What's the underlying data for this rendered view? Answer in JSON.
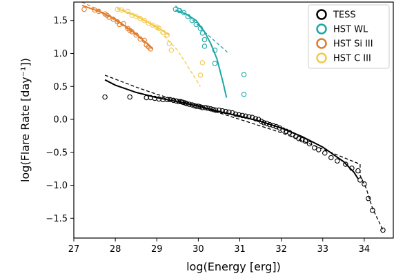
{
  "chart_data": {
    "type": "scatter",
    "xlabel": "log(Energy [erg])",
    "ylabel": "log(Flare Rate [day⁻¹])",
    "xlim": [
      27,
      34.7
    ],
    "ylim": [
      -1.8,
      1.78
    ],
    "xticks": [
      27,
      28,
      29,
      30,
      31,
      32,
      33,
      34
    ],
    "yticks": [
      -1.5,
      -1.0,
      -0.5,
      0.0,
      0.5,
      1.0,
      1.5
    ],
    "xtick_labels": [
      "27",
      "28",
      "29",
      "30",
      "31",
      "32",
      "33",
      "34"
    ],
    "ytick_labels": [
      "−1.5",
      "−1.0",
      "−0.5",
      "0.0",
      "0.5",
      "1.0",
      "1.5"
    ],
    "grid": false,
    "legend_position": "top-right",
    "series": [
      {
        "name": "TESS",
        "color": "#000000",
        "points": [
          [
            27.75,
            0.34
          ],
          [
            28.35,
            0.34
          ],
          [
            28.75,
            0.33
          ],
          [
            28.85,
            0.33
          ],
          [
            28.95,
            0.32
          ],
          [
            29.05,
            0.31
          ],
          [
            29.15,
            0.3
          ],
          [
            29.25,
            0.3
          ],
          [
            29.32,
            0.3
          ],
          [
            29.4,
            0.29
          ],
          [
            29.47,
            0.28
          ],
          [
            29.53,
            0.27
          ],
          [
            29.58,
            0.27
          ],
          [
            29.63,
            0.26
          ],
          [
            29.68,
            0.25
          ],
          [
            29.72,
            0.24
          ],
          [
            29.78,
            0.23
          ],
          [
            29.85,
            0.22
          ],
          [
            29.9,
            0.21
          ],
          [
            29.95,
            0.2
          ],
          [
            30.0,
            0.2
          ],
          [
            30.05,
            0.19
          ],
          [
            30.1,
            0.18
          ],
          [
            30.17,
            0.18
          ],
          [
            30.23,
            0.17
          ],
          [
            30.3,
            0.16
          ],
          [
            30.36,
            0.15
          ],
          [
            30.42,
            0.14
          ],
          [
            30.5,
            0.14
          ],
          [
            30.58,
            0.13
          ],
          [
            30.66,
            0.12
          ],
          [
            30.74,
            0.11
          ],
          [
            30.82,
            0.1
          ],
          [
            30.9,
            0.08
          ],
          [
            30.98,
            0.07
          ],
          [
            31.06,
            0.06
          ],
          [
            31.14,
            0.05
          ],
          [
            31.22,
            0.04
          ],
          [
            31.3,
            0.03
          ],
          [
            31.38,
            0.01
          ],
          [
            31.45,
            0.0
          ],
          [
            31.52,
            -0.03
          ],
          [
            31.58,
            -0.05
          ],
          [
            31.65,
            -0.06
          ],
          [
            31.72,
            -0.08
          ],
          [
            31.8,
            -0.09
          ],
          [
            31.88,
            -0.11
          ],
          [
            31.96,
            -0.13
          ],
          [
            32.04,
            -0.16
          ],
          [
            32.12,
            -0.18
          ],
          [
            32.2,
            -0.2
          ],
          [
            32.28,
            -0.23
          ],
          [
            32.35,
            -0.26
          ],
          [
            32.42,
            -0.29
          ],
          [
            32.5,
            -0.31
          ],
          [
            32.58,
            -0.33
          ],
          [
            32.68,
            -0.37
          ],
          [
            32.8,
            -0.43
          ],
          [
            32.9,
            -0.46
          ],
          [
            33.05,
            -0.51
          ],
          [
            33.2,
            -0.58
          ],
          [
            33.35,
            -0.63
          ],
          [
            33.55,
            -0.68
          ],
          [
            33.7,
            -0.74
          ],
          [
            33.85,
            -0.78
          ],
          [
            33.9,
            -0.92
          ],
          [
            34.0,
            -0.98
          ],
          [
            34.1,
            -1.2
          ],
          [
            34.2,
            -1.38
          ],
          [
            34.45,
            -1.68
          ]
        ],
        "fit_solid": [
          [
            27.75,
            0.6
          ],
          [
            28.0,
            0.52
          ],
          [
            28.5,
            0.41
          ],
          [
            29.0,
            0.33
          ],
          [
            29.5,
            0.27
          ],
          [
            30.0,
            0.2
          ],
          [
            30.5,
            0.12
          ],
          [
            31.0,
            0.05
          ],
          [
            31.5,
            -0.03
          ],
          [
            32.0,
            -0.13
          ],
          [
            32.5,
            -0.26
          ],
          [
            33.0,
            -0.42
          ],
          [
            33.5,
            -0.64
          ],
          [
            33.75,
            -0.8
          ],
          [
            33.85,
            -0.9
          ]
        ],
        "fit_dashed": [
          [
            27.75,
            0.67
          ],
          [
            28.5,
            0.49
          ],
          [
            29.0,
            0.38
          ],
          [
            30.0,
            0.2
          ],
          [
            31.0,
            0.0
          ],
          [
            32.0,
            -0.2
          ],
          [
            33.0,
            -0.45
          ],
          [
            33.9,
            -0.68
          ],
          [
            33.9,
            -0.85
          ],
          [
            34.05,
            -1.05
          ],
          [
            34.2,
            -1.35
          ],
          [
            34.45,
            -1.68
          ]
        ]
      },
      {
        "name": "HST WL",
        "color": "#1aa6a6",
        "points": [
          [
            29.45,
            1.67
          ],
          [
            29.55,
            1.65
          ],
          [
            29.65,
            1.62
          ],
          [
            29.75,
            1.56
          ],
          [
            29.85,
            1.5
          ],
          [
            29.95,
            1.44
          ],
          [
            30.05,
            1.38
          ],
          [
            30.1,
            1.31
          ],
          [
            30.15,
            1.21
          ],
          [
            30.15,
            1.11
          ],
          [
            30.4,
            1.05
          ],
          [
            30.4,
            0.85
          ],
          [
            31.1,
            0.68
          ],
          [
            31.1,
            0.38
          ]
        ],
        "fit_solid": [
          [
            29.45,
            1.66
          ],
          [
            29.7,
            1.6
          ],
          [
            29.95,
            1.5
          ],
          [
            30.15,
            1.33
          ],
          [
            30.3,
            1.15
          ],
          [
            30.45,
            0.92
          ],
          [
            30.6,
            0.55
          ],
          [
            30.68,
            0.33
          ]
        ],
        "fit_dashed": [
          [
            29.45,
            1.72
          ],
          [
            29.8,
            1.55
          ],
          [
            30.2,
            1.3
          ],
          [
            30.7,
            1.02
          ]
        ]
      },
      {
        "name": "HST Si III",
        "color": "#e07b2a",
        "points": [
          [
            27.25,
            1.67
          ],
          [
            27.5,
            1.66
          ],
          [
            27.6,
            1.64
          ],
          [
            27.75,
            1.6
          ],
          [
            27.8,
            1.58
          ],
          [
            27.85,
            1.55
          ],
          [
            27.95,
            1.52
          ],
          [
            28.05,
            1.48
          ],
          [
            28.1,
            1.44
          ],
          [
            28.2,
            1.45
          ],
          [
            28.3,
            1.38
          ],
          [
            28.35,
            1.35
          ],
          [
            28.4,
            1.33
          ],
          [
            28.5,
            1.28
          ],
          [
            28.6,
            1.22
          ],
          [
            28.7,
            1.2
          ],
          [
            28.75,
            1.13
          ],
          [
            28.8,
            1.1
          ],
          [
            28.85,
            1.07
          ]
        ],
        "fit_solid": [
          [
            27.2,
            1.73
          ],
          [
            27.6,
            1.64
          ],
          [
            28.0,
            1.52
          ],
          [
            28.5,
            1.3
          ],
          [
            28.9,
            1.07
          ]
        ],
        "fit_dashed": [
          [
            27.2,
            1.78
          ],
          [
            27.6,
            1.66
          ],
          [
            28.0,
            1.5
          ],
          [
            28.5,
            1.28
          ],
          [
            28.9,
            1.08
          ]
        ]
      },
      {
        "name": "HST C III",
        "color": "#f2c94c",
        "points": [
          [
            28.05,
            1.67
          ],
          [
            28.15,
            1.66
          ],
          [
            28.3,
            1.64
          ],
          [
            28.4,
            1.58
          ],
          [
            28.5,
            1.56
          ],
          [
            28.6,
            1.53
          ],
          [
            28.7,
            1.5
          ],
          [
            28.8,
            1.46
          ],
          [
            28.9,
            1.43
          ],
          [
            29.0,
            1.4
          ],
          [
            29.05,
            1.38
          ],
          [
            29.15,
            1.32
          ],
          [
            29.25,
            1.28
          ],
          [
            29.3,
            1.15
          ],
          [
            29.35,
            1.05
          ],
          [
            30.1,
            0.86
          ],
          [
            30.05,
            0.67
          ]
        ],
        "fit_solid": [
          [
            28.05,
            1.68
          ],
          [
            28.5,
            1.57
          ],
          [
            29.0,
            1.4
          ],
          [
            29.3,
            1.28
          ]
        ],
        "fit_dashed": [
          [
            28.05,
            1.7
          ],
          [
            28.6,
            1.55
          ],
          [
            29.0,
            1.38
          ],
          [
            29.5,
            1.05
          ],
          [
            30.05,
            0.5
          ]
        ]
      }
    ]
  }
}
